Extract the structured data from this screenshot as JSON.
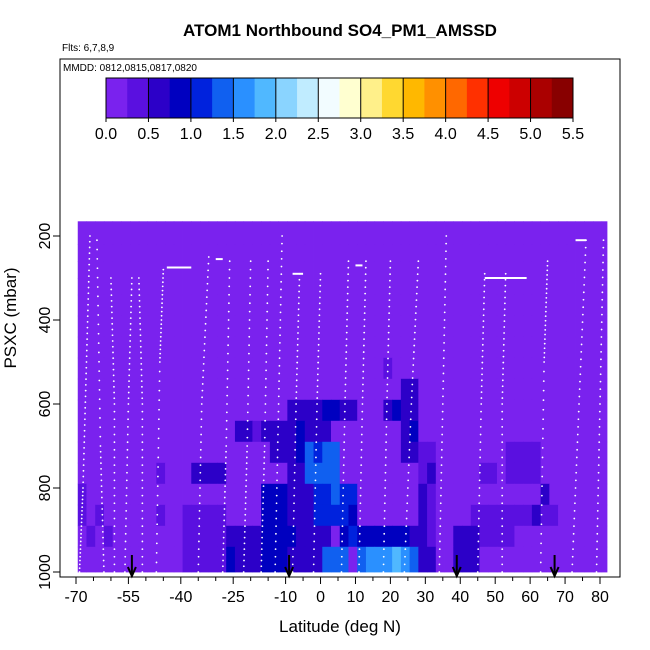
{
  "chart_data": {
    "type": "heatmap",
    "title": "ATOM1 Northbound SO4_PM1_AMSSD",
    "flights_label": "Flts: 6,7,8,9",
    "dates_label": "MMDD: 0812,0815,0817,0820",
    "xlabel": "Latitude (deg N)",
    "ylabel": "PSXC (mbar)",
    "xlim": [
      -70,
      83
    ],
    "ylim": [
      1000,
      150
    ],
    "y_reversed": true,
    "x_tick_values": [
      -70,
      -55,
      -40,
      -25,
      -10,
      0,
      10,
      20,
      30,
      40,
      50,
      60,
      70,
      80
    ],
    "x_tick_labels": [
      "-70",
      "-55",
      "-40",
      "-25",
      "-10",
      "0",
      "10",
      "20",
      "30",
      "40",
      "50",
      "60",
      "70",
      "80"
    ],
    "x_minor_ticks": [
      -65,
      -60,
      -50,
      -45,
      -35,
      -30,
      -20,
      -15,
      -5,
      5,
      15,
      25,
      35,
      45,
      55,
      65,
      75
    ],
    "y_tick_values": [
      200,
      400,
      600,
      800,
      1000
    ],
    "y_tick_labels": [
      "200",
      "400",
      "600",
      "800",
      "1000"
    ],
    "colorbar": {
      "min": 0,
      "max": 5.5,
      "tick_values": [
        0,
        0.5,
        1,
        1.5,
        2,
        2.5,
        3,
        3.5,
        4,
        4.5,
        5,
        5.5
      ],
      "tick_labels": [
        "0.0",
        "0.5",
        "1.0",
        "1.5",
        "2.0",
        "2.5",
        "3.0",
        "3.5",
        "4.0",
        "4.5",
        "5.0",
        "5.5"
      ],
      "colors": [
        "#7a22ee",
        "#5a10e0",
        "#2c00c8",
        "#0000c0",
        "#0022dd",
        "#1060f0",
        "#2a90ff",
        "#50b8ff",
        "#8ad4ff",
        "#c0ecff",
        "#f2fcff",
        "#ffffd0",
        "#fff08a",
        "#ffd830",
        "#ffb800",
        "#ff9000",
        "#ff6800",
        "#ff3000",
        "#ee0000",
        "#cc0000",
        "#aa0000",
        "#880000"
      ]
    },
    "data_extent": {
      "lat_min": -69.5,
      "lat_max": 82,
      "pressure_top": 165,
      "pressure_bottom": 1000
    },
    "pressure_levels": [
      165,
      220,
      260,
      300,
      340,
      390,
      440,
      490,
      540,
      590,
      640,
      690,
      740,
      790,
      840,
      890,
      940,
      1000
    ],
    "background_value": 0.1,
    "anomalies": [
      {
        "lat": [
          -69.5,
          -45
        ],
        "p": [
          690,
          940
        ],
        "v": 0.2
      },
      {
        "lat": [
          -40,
          -28
        ],
        "p": [
          840,
          1000
        ],
        "v": 0.35
      },
      {
        "lat": [
          -38,
          -28
        ],
        "p": [
          740,
          790
        ],
        "v": 0.7
      },
      {
        "lat": [
          -28,
          -18
        ],
        "p": [
          890,
          1000
        ],
        "v": 0.7
      },
      {
        "lat": [
          -25,
          -15
        ],
        "p": [
          640,
          690
        ],
        "v": 0.55
      },
      {
        "lat": [
          -18,
          -10
        ],
        "p": [
          790,
          1000
        ],
        "v": 0.9
      },
      {
        "lat": [
          -10,
          2
        ],
        "p": [
          590,
          990
        ],
        "v": 0.7
      },
      {
        "lat": [
          -15,
          -10
        ],
        "p": [
          640,
          740
        ],
        "v": 0.6
      },
      {
        "lat": [
          -5,
          0
        ],
        "p": [
          690,
          740
        ],
        "v": 1.1
      },
      {
        "lat": [
          -4,
          6
        ],
        "p": [
          690,
          790
        ],
        "v": 1.3
      },
      {
        "lat": [
          -2,
          5
        ],
        "p": [
          790,
          890
        ],
        "v": 1.2
      },
      {
        "lat": [
          5,
          10
        ],
        "p": [
          790,
          940
        ],
        "v": 1.05
      },
      {
        "lat": [
          2,
          10
        ],
        "p": [
          590,
          640
        ],
        "v": 0.75
      },
      {
        "lat": [
          0,
          8
        ],
        "p": [
          940,
          1000
        ],
        "v": 1.4
      },
      {
        "lat": [
          10,
          28
        ],
        "p": [
          890,
          940
        ],
        "v": 0.8
      },
      {
        "lat": [
          11,
          28
        ],
        "p": [
          940,
          1000
        ],
        "v": 1.45
      },
      {
        "lat": [
          12,
          16
        ],
        "p": [
          940,
          1000
        ],
        "v": 1.6
      },
      {
        "lat": [
          16,
          24
        ],
        "p": [
          955,
          1000
        ],
        "v": 1.75
      },
      {
        "lat": [
          17,
          20
        ],
        "p": [
          490,
          540
        ],
        "v": 0.5
      },
      {
        "lat": [
          18,
          22
        ],
        "p": [
          590,
          640
        ],
        "v": 0.75
      },
      {
        "lat": [
          23,
          27
        ],
        "p": [
          540,
          740
        ],
        "v": 0.7
      },
      {
        "lat": [
          28,
          32
        ],
        "p": [
          690,
          1000
        ],
        "v": 0.55
      },
      {
        "lat": [
          38,
          46
        ],
        "p": [
          890,
          1000
        ],
        "v": 0.55
      },
      {
        "lat": [
          44,
          68
        ],
        "p": [
          840,
          890
        ],
        "v": 0.45
      },
      {
        "lat": [
          46,
          56
        ],
        "p": [
          890,
          940
        ],
        "v": 0.5
      },
      {
        "lat": [
          44,
          50
        ],
        "p": [
          740,
          790
        ],
        "v": 0.3
      },
      {
        "lat": [
          54,
          64
        ],
        "p": [
          690,
          790
        ],
        "v": 0.35
      },
      {
        "lat": [
          62,
          66
        ],
        "p": [
          790,
          840
        ],
        "v": 0.5
      }
    ],
    "profiles": [
      {
        "lat": [
          -69,
          -68,
          -67,
          -66
        ],
        "p": [
          1000,
          800,
          500,
          200
        ]
      },
      {
        "lat": [
          -62,
          -63,
          -64
        ],
        "p": [
          1000,
          700,
          210
        ]
      },
      {
        "lat": [
          -59,
          -59,
          -60
        ],
        "p": [
          1000,
          600,
          300
        ]
      },
      {
        "lat": [
          -56,
          -55,
          -54
        ],
        "p": [
          1000,
          600,
          300
        ]
      },
      {
        "lat": [
          -51,
          -51,
          -52
        ],
        "p": [
          1000,
          600,
          300
        ]
      },
      {
        "lat": [
          -47,
          -46,
          -45
        ],
        "p": [
          1000,
          500,
          280
        ]
      },
      {
        "lat": [
          -35,
          -34,
          -32
        ],
        "p": [
          1000,
          600,
          250
        ]
      },
      {
        "lat": [
          -28,
          -27,
          -26
        ],
        "p": [
          1000,
          700,
          260
        ]
      },
      {
        "lat": [
          -22,
          -21,
          -20
        ],
        "p": [
          1000,
          700,
          260
        ]
      },
      {
        "lat": [
          -17,
          -16,
          -15
        ],
        "p": [
          1000,
          700,
          260
        ]
      },
      {
        "lat": [
          -13,
          -12,
          -11
        ],
        "p": [
          1000,
          600,
          200
        ]
      },
      {
        "lat": [
          -8,
          -7,
          -6
        ],
        "p": [
          1000,
          600,
          290
        ]
      },
      {
        "lat": [
          -2,
          -1,
          0
        ],
        "p": [
          1000,
          600,
          290
        ]
      },
      {
        "lat": [
          6,
          7,
          8
        ],
        "p": [
          1000,
          600,
          260
        ]
      },
      {
        "lat": [
          11,
          12,
          13
        ],
        "p": [
          1000,
          600,
          260
        ]
      },
      {
        "lat": [
          18,
          19,
          20
        ],
        "p": [
          1000,
          600,
          260
        ]
      },
      {
        "lat": [
          24,
          26,
          28
        ],
        "p": [
          1000,
          600,
          260
        ]
      },
      {
        "lat": [
          34,
          35,
          36
        ],
        "p": [
          1000,
          600,
          200
        ]
      },
      {
        "lat": [
          45,
          46,
          47
        ],
        "p": [
          1000,
          600,
          290
        ]
      },
      {
        "lat": [
          52,
          52,
          53
        ],
        "p": [
          1000,
          600,
          290
        ]
      },
      {
        "lat": [
          63,
          64,
          65
        ],
        "p": [
          1000,
          500,
          260
        ]
      },
      {
        "lat": [
          72,
          74,
          76
        ],
        "p": [
          1000,
          600,
          210
        ]
      },
      {
        "lat": [
          79,
          80,
          81
        ],
        "p": [
          1000,
          600,
          210
        ]
      }
    ],
    "level_segments": [
      {
        "lat": [
          -44,
          -37
        ],
        "p": 275
      },
      {
        "lat": [
          -30,
          -28
        ],
        "p": 255
      },
      {
        "lat": [
          -8,
          -5
        ],
        "p": 290
      },
      {
        "lat": [
          10,
          12
        ],
        "p": 270
      },
      {
        "lat": [
          47,
          59
        ],
        "p": 300
      },
      {
        "lat": [
          73,
          76
        ],
        "p": 210
      }
    ],
    "arrows": [
      -54,
      -9,
      39,
      67
    ]
  }
}
